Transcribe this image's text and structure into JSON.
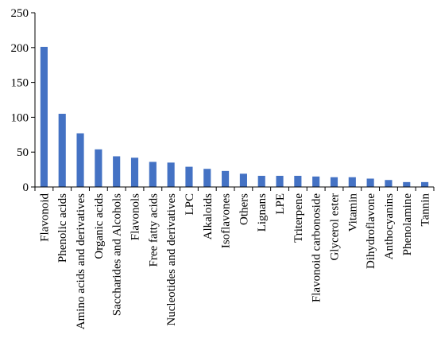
{
  "chart_data": {
    "type": "bar",
    "categories": [
      "Flavonoid",
      "Phenolic acids",
      "Amino acids and derivatives",
      "Organic acids",
      "Saccharides and Alcohols",
      "Flavonols",
      "Free fatty acids",
      "Nucleotides and derivatives",
      "LPC",
      "Alkaloids",
      "Isoflavones",
      "Others",
      "Lignans",
      "LPE",
      "Triterpene",
      "Flavonoid carbonoside",
      "Glycerol ester",
      "Vitamin",
      "Dihydroflavone",
      "Anthocyanins",
      "Phenolamine",
      "Tannin"
    ],
    "values": [
      201,
      105,
      77,
      54,
      44,
      42,
      36,
      35,
      29,
      26,
      23,
      19,
      16,
      16,
      16,
      15,
      14,
      14,
      12,
      10,
      7,
      7
    ],
    "title": "",
    "xlabel": "",
    "ylabel": "",
    "ylim": [
      0,
      250
    ],
    "yticks": [
      "0",
      "50",
      "100",
      "150",
      "200",
      "250"
    ],
    "bar_color": "#4472C4",
    "grid": false,
    "legend": "none"
  }
}
